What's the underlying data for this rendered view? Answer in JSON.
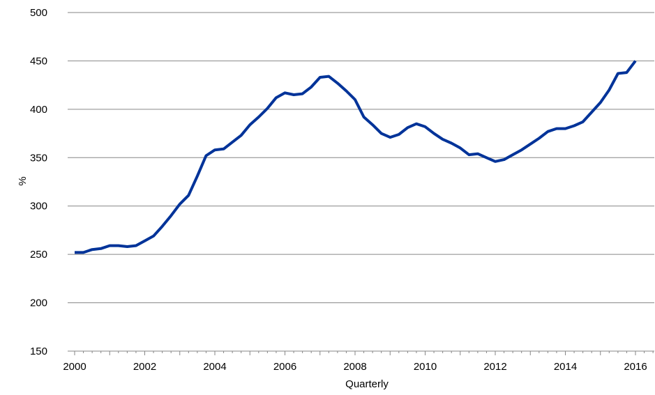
{
  "chart_data": {
    "type": "line",
    "title": "",
    "xlabel": "Quarterly",
    "ylabel": "%",
    "ylim": [
      150,
      500
    ],
    "yticks": [
      "150",
      "200",
      "250",
      "300",
      "350",
      "400",
      "450",
      "500"
    ],
    "xticks": [
      "2000",
      "2002",
      "2004",
      "2006",
      "2008",
      "2010",
      "2012",
      "2014",
      "2016"
    ],
    "grid": "horizontal",
    "line_color": "#003399",
    "series": [
      {
        "name": "",
        "x": [
          "2000 Q1",
          "2000 Q2",
          "2000 Q3",
          "2000 Q4",
          "2001 Q1",
          "2001 Q2",
          "2001 Q3",
          "2001 Q4",
          "2002 Q1",
          "2002 Q2",
          "2002 Q3",
          "2002 Q4",
          "2003 Q1",
          "2003 Q2",
          "2003 Q3",
          "2003 Q4",
          "2004 Q1",
          "2004 Q2",
          "2004 Q3",
          "2004 Q4",
          "2005 Q1",
          "2005 Q2",
          "2005 Q3",
          "2005 Q4",
          "2006 Q1",
          "2006 Q2",
          "2006 Q3",
          "2006 Q4",
          "2007 Q1",
          "2007 Q2",
          "2007 Q3",
          "2007 Q4",
          "2008 Q1",
          "2008 Q2",
          "2008 Q3",
          "2008 Q4",
          "2009 Q1",
          "2009 Q2",
          "2009 Q3",
          "2009 Q4",
          "2010 Q1",
          "2010 Q2",
          "2010 Q3",
          "2010 Q4",
          "2011 Q1",
          "2011 Q2",
          "2011 Q3",
          "2011 Q4",
          "2012 Q1",
          "2012 Q2",
          "2012 Q3",
          "2012 Q4",
          "2013 Q1",
          "2013 Q2",
          "2013 Q3",
          "2013 Q4",
          "2014 Q1",
          "2014 Q2",
          "2014 Q3",
          "2014 Q4",
          "2015 Q1",
          "2015 Q2",
          "2015 Q3",
          "2015 Q4",
          "2016 Q1"
        ],
        "values": [
          252,
          252,
          255,
          256,
          259,
          259,
          258,
          259,
          264,
          269,
          279,
          290,
          302,
          311,
          331,
          352,
          358,
          359,
          366,
          373,
          384,
          392,
          401,
          412,
          417,
          415,
          416,
          423,
          433,
          434,
          427,
          419,
          410,
          392,
          384,
          375,
          371,
          374,
          381,
          385,
          382,
          375,
          369,
          365,
          360,
          353,
          354,
          350,
          346,
          348,
          353,
          358,
          364,
          370,
          377,
          380,
          380,
          383,
          387,
          397,
          407,
          420,
          437,
          438,
          450
        ]
      }
    ]
  }
}
